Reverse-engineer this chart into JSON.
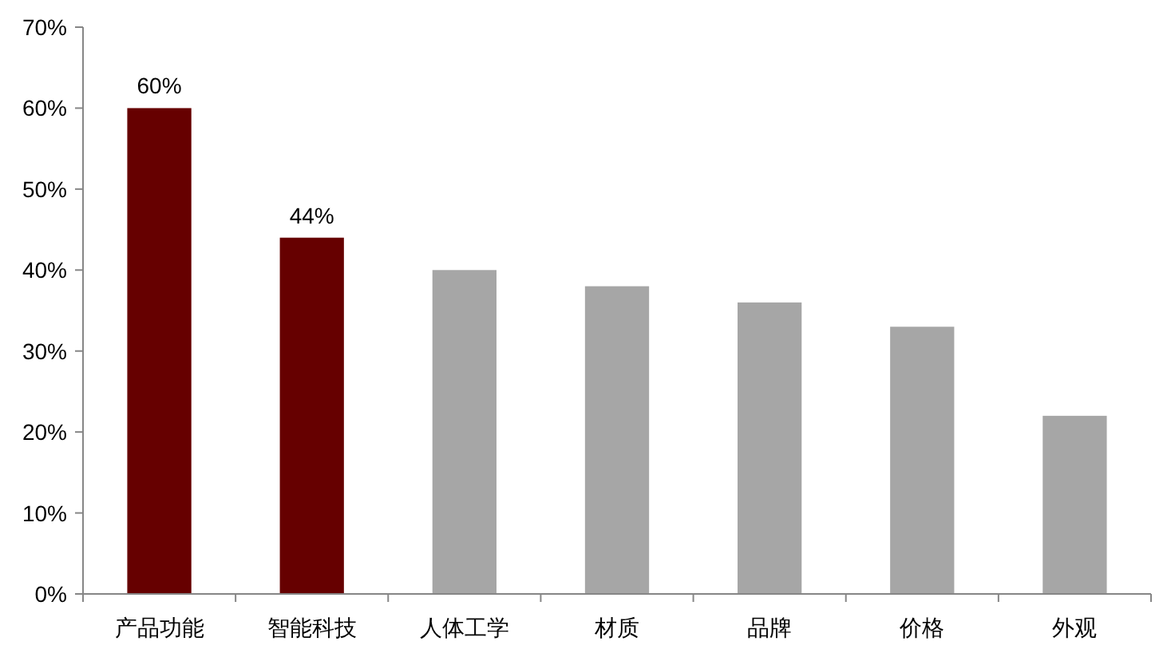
{
  "chart_data": {
    "type": "bar",
    "categories": [
      "产品功能",
      "智能科技",
      "人体工学",
      "材质",
      "品牌",
      "价格",
      "外观"
    ],
    "values": [
      60,
      44,
      40,
      38,
      36,
      33,
      22
    ],
    "colors": [
      "#660000",
      "#660000",
      "#a6a6a6",
      "#a6a6a6",
      "#a6a6a6",
      "#a6a6a6",
      "#a6a6a6"
    ],
    "value_labels": [
      "60%",
      "44%",
      null,
      null,
      null,
      null,
      null
    ],
    "ylim": [
      0,
      70
    ],
    "yticks": [
      {
        "value": 0,
        "label": "0%"
      },
      {
        "value": 10,
        "label": "10%"
      },
      {
        "value": 20,
        "label": "20%"
      },
      {
        "value": 30,
        "label": "30%"
      },
      {
        "value": 40,
        "label": "40%"
      },
      {
        "value": 50,
        "label": "50%"
      },
      {
        "value": 60,
        "label": "60%"
      },
      {
        "value": 70,
        "label": "70%"
      }
    ],
    "grid": false
  }
}
